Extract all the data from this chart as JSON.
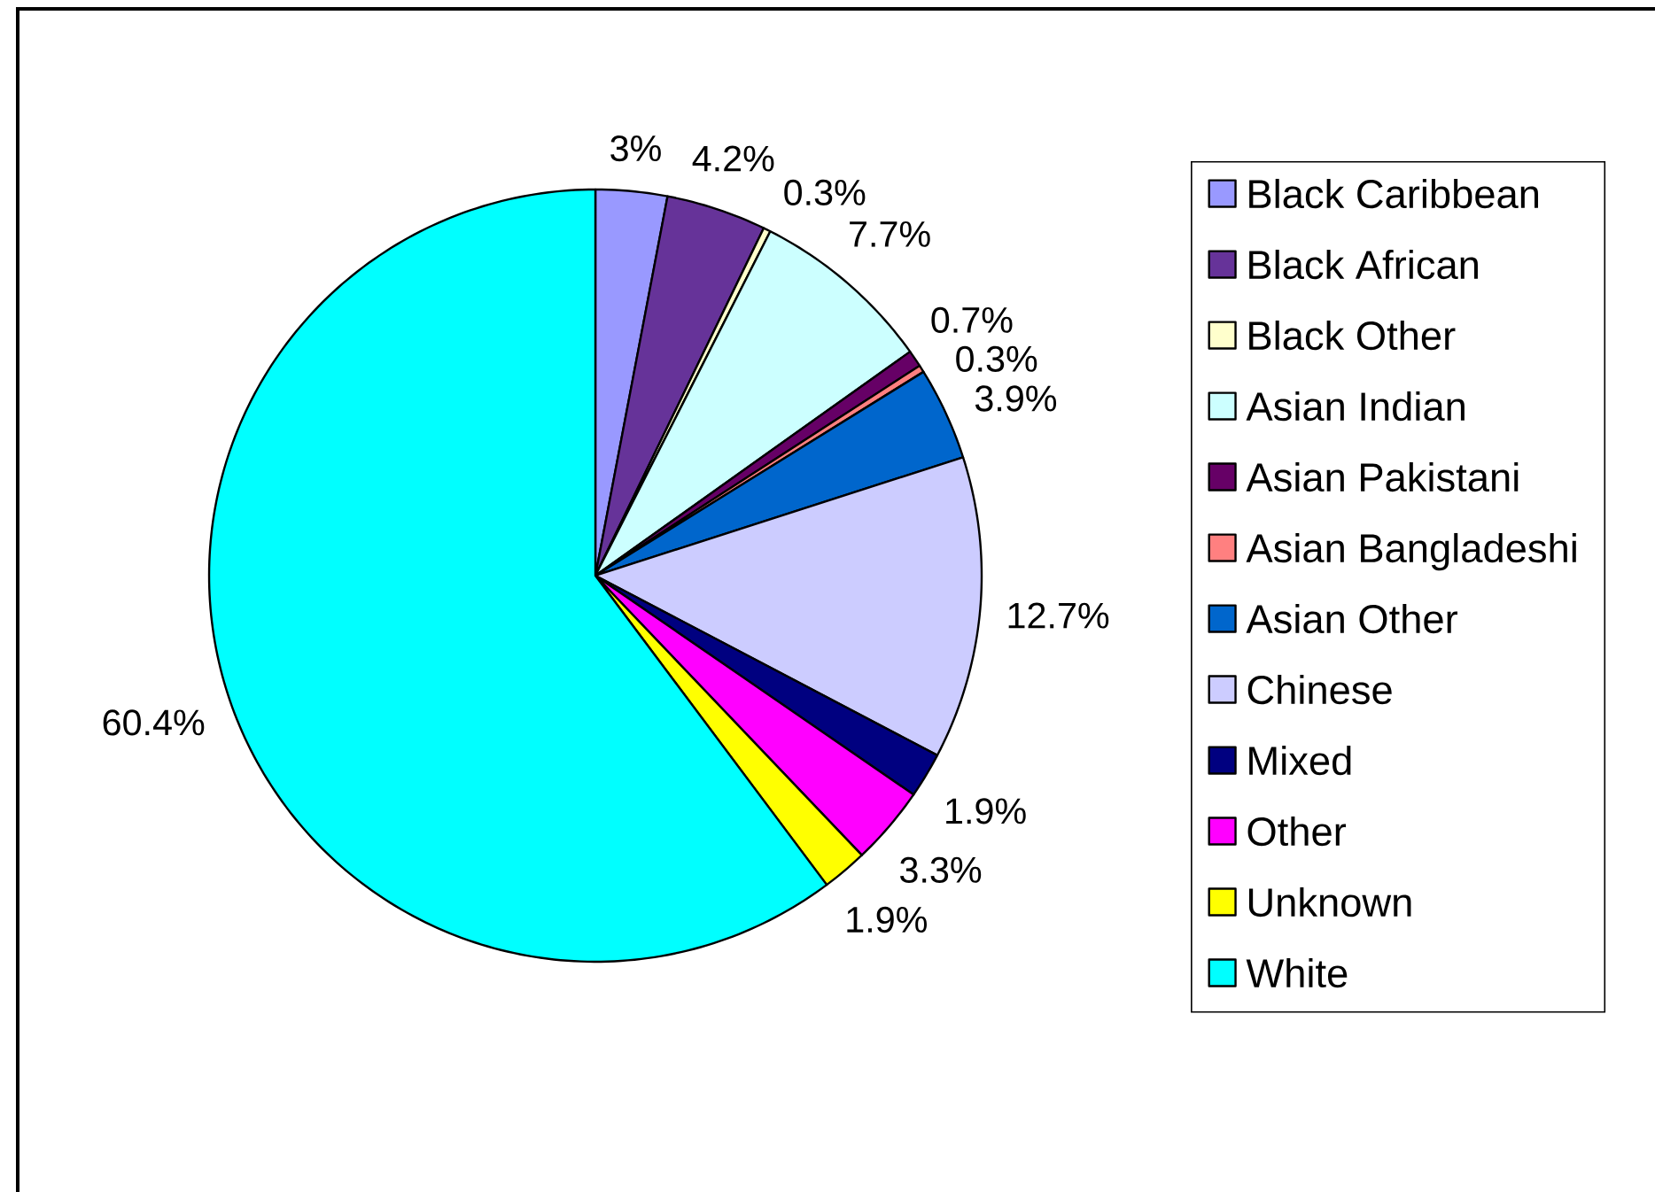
{
  "chart_data": {
    "type": "pie",
    "categories": [
      "Black Caribbean",
      "Black African",
      "Black Other",
      "Asian Indian",
      "Asian Pakistani",
      "Asian Bangladeshi",
      "Asian Other",
      "Chinese",
      "Mixed",
      "Other",
      "Unknown",
      "White"
    ],
    "values": [
      3,
      4.2,
      0.3,
      7.7,
      0.7,
      0.3,
      3.9,
      12.7,
      1.9,
      3.3,
      1.9,
      60.4
    ],
    "value_labels": [
      "3%",
      "4.2%",
      "0.3%",
      "7.7%",
      "0.7%",
      "0.3%",
      "3.9%",
      "12.7%",
      "1.9%",
      "3.3%",
      "1.9%",
      "60.4%"
    ],
    "colors": [
      "#9999ff",
      "#663399",
      "#ffffcc",
      "#ccffff",
      "#660066",
      "#ff8080",
      "#0066cc",
      "#ccccff",
      "#000080",
      "#ff00ff",
      "#ffff00",
      "#00ffff"
    ],
    "legend": "right"
  }
}
